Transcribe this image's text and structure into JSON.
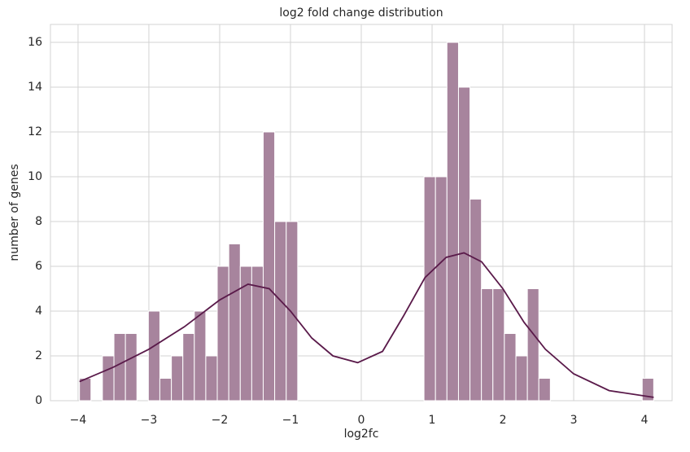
{
  "chart_data": {
    "type": "histogram",
    "title": "log2 fold change distribution",
    "x_label": "log2fc",
    "y_label": "number of genes",
    "bins": [
      -3.98,
      -3.818,
      -3.656,
      -3.493,
      -3.331,
      -3.169,
      -3.007,
      -2.845,
      -2.682,
      -2.52,
      -2.358,
      -2.196,
      -2.034,
      -1.871,
      -1.709,
      -1.547,
      -1.385,
      -1.223,
      -1.06,
      -0.898,
      -0.736,
      -0.574,
      -0.412,
      -0.249,
      -0.087,
      0.075,
      0.237,
      0.399,
      0.562,
      0.724,
      0.886,
      1.048,
      1.21,
      1.373,
      1.535,
      1.697,
      1.859,
      2.021,
      2.184,
      2.346,
      2.508,
      2.67,
      2.832,
      2.995,
      3.157,
      3.319,
      3.481,
      3.643,
      3.806,
      3.968,
      4.13
    ],
    "values": [
      1,
      0,
      2,
      3,
      3,
      0,
      4,
      1,
      2,
      3,
      4,
      2,
      6,
      7,
      6,
      6,
      12,
      8,
      8,
      0,
      0,
      0,
      0,
      0,
      0,
      0,
      0,
      0,
      0,
      0,
      10,
      10,
      16,
      14,
      9,
      5,
      5,
      3,
      2,
      5,
      1,
      0,
      0,
      0,
      0,
      0,
      0,
      0,
      0,
      1
    ],
    "color": "#a7849d",
    "kde": {
      "color": "#5a1a4a",
      "x": [
        -3.98,
        -3.5,
        -3.0,
        -2.5,
        -2.0,
        -1.6,
        -1.3,
        -1.0,
        -0.7,
        -0.4,
        -0.05,
        0.3,
        0.6,
        0.9,
        1.2,
        1.45,
        1.7,
        2.0,
        2.3,
        2.6,
        3.0,
        3.5,
        4.13
      ],
      "y": [
        0.85,
        1.5,
        2.3,
        3.3,
        4.5,
        5.2,
        5.0,
        4.0,
        2.8,
        2.0,
        1.7,
        2.2,
        3.8,
        5.5,
        6.4,
        6.6,
        6.2,
        5.0,
        3.5,
        2.3,
        1.2,
        0.45,
        0.15
      ]
    },
    "xlim": [
      -4.39,
      4.39
    ],
    "ylim": [
      0,
      16.8
    ],
    "xticks": [
      {
        "value": -4,
        "label": "−4"
      },
      {
        "value": -3,
        "label": "−3"
      },
      {
        "value": -2,
        "label": "−2"
      },
      {
        "value": -1,
        "label": "−1"
      },
      0,
      1,
      2,
      3,
      4
    ],
    "yticks": [
      0,
      2,
      4,
      6,
      8,
      10,
      12,
      14,
      16
    ],
    "grid": true
  }
}
